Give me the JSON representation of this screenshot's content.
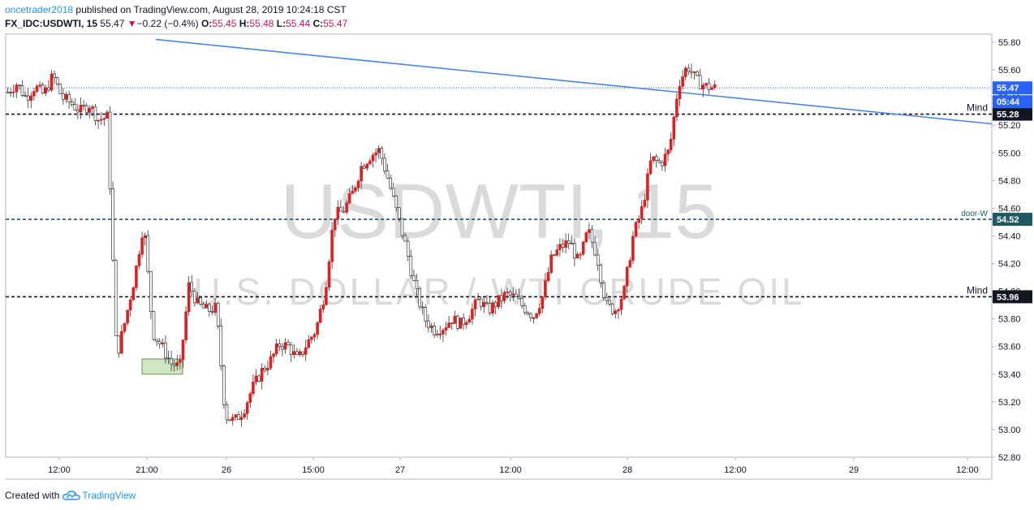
{
  "header": {
    "author": "oncetrader2018",
    "published_text": "published on TradingView.com, August 28, 2019 10:24:18 CST",
    "symbol": "FX_IDC:USDWTI, 15",
    "last": "55.47",
    "change_arrow": "▼",
    "change": "−0.22 (−0.4%)",
    "o_label": "O:",
    "o_value": "55.45",
    "h_label": "H:",
    "h_value": "55.48",
    "l_label": "L:",
    "l_value": "55.44",
    "c_label": "C:",
    "c_value": "55.47"
  },
  "footer": {
    "created_with": "Created with",
    "brand": "TradingView",
    "brand_icon": "tradingview-cloud-icon"
  },
  "colors": {
    "up": "#e02020",
    "down": "#1a1a1a",
    "trendline": "#4a86e8",
    "watermark": "#dadada",
    "badge_dark": "#131722",
    "badge_teal": "#1f5a63",
    "badge_blue": "#2962ff"
  },
  "chart_data": {
    "type": "candlestick",
    "watermark_symbol": "USDWTI, 15",
    "watermark_name": "U.S. DOLLAR / WTI CRUDE OIL",
    "y_ticks": [
      "55.80",
      "55.60",
      "55.40",
      "55.20",
      "55.00",
      "54.80",
      "54.60",
      "54.40",
      "54.20",
      "54.00",
      "53.80",
      "53.60",
      "53.40",
      "53.20",
      "53.00",
      "52.80"
    ],
    "ylim": [
      52.8,
      55.8
    ],
    "x_ticks": [
      "12:00",
      "21:00",
      "26",
      "15:00",
      "27",
      "12:00",
      "28",
      "12:00",
      "29",
      "12:00"
    ],
    "horizontal_levels": [
      {
        "price": 55.47,
        "style": "dotted",
        "label": "",
        "badge": "55.47",
        "badge_color": "#2962ff"
      },
      {
        "price": 55.28,
        "style": "dashed",
        "label": "Mind",
        "badge": "55.28",
        "badge_color": "#131722"
      },
      {
        "price": 54.52,
        "style": "dashed",
        "label": "door-W",
        "badge": "54.52",
        "badge_color": "#1f5a63"
      },
      {
        "price": 53.96,
        "style": "dashed",
        "label": "Mind",
        "badge": "53.96",
        "badge_color": "#131722"
      }
    ],
    "countdown_badge": "05:44",
    "trendline": {
      "from_price": 55.82,
      "to_price": 55.21
    },
    "demand_box": {
      "price_top": 53.51,
      "price_bottom": 53.4
    },
    "price_path": [
      55.44,
      55.5,
      55.4,
      55.48,
      55.42,
      55.56,
      55.4,
      55.36,
      55.3,
      55.35,
      55.24,
      55.26,
      53.52,
      53.8,
      54.1,
      54.5,
      53.7,
      53.6,
      53.48,
      53.45,
      54.05,
      53.9,
      53.86,
      53.88,
      53.1,
      53.06,
      53.14,
      53.3,
      53.42,
      53.5,
      53.62,
      53.6,
      53.5,
      53.62,
      53.72,
      54.0,
      54.55,
      54.58,
      54.7,
      54.9,
      54.98,
      55.02,
      54.8,
      54.55,
      54.3,
      54.0,
      53.8,
      53.72,
      53.74,
      53.8,
      53.76,
      53.84,
      53.94,
      53.86,
      53.92,
      53.98,
      53.95,
      53.88,
      53.82,
      53.96,
      54.24,
      54.32,
      54.36,
      54.2,
      54.44,
      54.26,
      53.9,
      53.86,
      54.0,
      54.4,
      54.6,
      54.96,
      54.92,
      55.02,
      55.5,
      55.63,
      55.52,
      55.48,
      55.47
    ]
  }
}
